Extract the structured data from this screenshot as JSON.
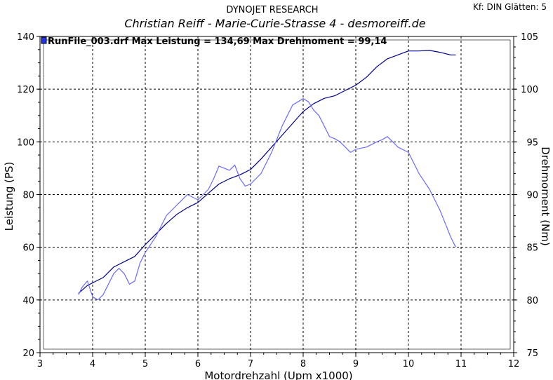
{
  "header": {
    "company": "DYNOJET RESEARCH",
    "subtitle": "Christian Reiff - Marie-Curie-Strasse 4 - desmoreiff.de",
    "settings": "Kf: DIN  Glätten: 5"
  },
  "legend": {
    "run_label": "RunFile_003.drf Max Leistung = 134,69     Max Drehmoment = 99,14"
  },
  "colors": {
    "power_line": "#00008b",
    "torque_line": "#6b6bff",
    "grid": "#000000",
    "legend_marker": "#2233ee"
  },
  "chart_data": {
    "type": "line",
    "xlabel": "Motordrehzahl (Upm x1000)",
    "ylabel": "Leistung (PS)",
    "y2label": "Drehmoment (Nm)",
    "xlim": [
      3,
      12
    ],
    "ylim": [
      20,
      140
    ],
    "y2lim": [
      75,
      105
    ],
    "x_ticks": [
      3,
      4,
      5,
      6,
      7,
      8,
      9,
      10,
      11,
      12
    ],
    "y_ticks": [
      20,
      40,
      60,
      80,
      100,
      120,
      140
    ],
    "y2_ticks": [
      75,
      80,
      85,
      90,
      95,
      100,
      105
    ],
    "grid": true,
    "series": [
      {
        "axis": "left",
        "x": [
          3.73,
          3.9,
          4.0,
          4.2,
          4.4,
          4.6,
          4.8,
          5.0,
          5.2,
          5.4,
          5.6,
          5.8,
          6.0,
          6.2,
          6.4,
          6.6,
          6.8,
          7.0,
          7.2,
          7.4,
          7.6,
          7.8,
          8.0,
          8.2,
          8.4,
          8.6,
          8.8,
          9.0,
          9.2,
          9.4,
          9.6,
          9.8,
          10.0,
          10.2,
          10.4,
          10.6,
          10.8,
          10.9
        ],
        "values": [
          42.5,
          45.5,
          46.5,
          48.5,
          52.5,
          54.5,
          56.5,
          61,
          65,
          69,
          72.5,
          75,
          77,
          80.5,
          84,
          86,
          87.5,
          89.5,
          93.5,
          98,
          102.5,
          107,
          111.5,
          114.5,
          116.5,
          117.5,
          119.5,
          121.5,
          124.5,
          128.5,
          131.5,
          133,
          134.5,
          134.5,
          134.7,
          134,
          133,
          133
        ]
      },
      {
        "axis": "right",
        "x": [
          3.73,
          3.8,
          3.9,
          4.0,
          4.1,
          4.2,
          4.3,
          4.4,
          4.5,
          4.6,
          4.7,
          4.8,
          4.9,
          5.0,
          5.2,
          5.4,
          5.6,
          5.8,
          6.0,
          6.2,
          6.3,
          6.4,
          6.5,
          6.6,
          6.7,
          6.8,
          6.9,
          7.0,
          7.2,
          7.4,
          7.6,
          7.8,
          8.0,
          8.1,
          8.2,
          8.3,
          8.4,
          8.5,
          8.6,
          8.7,
          8.8,
          8.9,
          9.0,
          9.2,
          9.4,
          9.5,
          9.6,
          9.7,
          9.8,
          10.0,
          10.2,
          10.4,
          10.6,
          10.8,
          10.9
        ],
        "values": [
          80.5,
          81.2,
          81.8,
          80.3,
          80.0,
          80.5,
          81.5,
          82.5,
          83.0,
          82.5,
          81.5,
          81.8,
          83.5,
          84.5,
          86.0,
          88.0,
          89.0,
          90.0,
          89.5,
          90.5,
          91.5,
          92.7,
          92.5,
          92.3,
          92.8,
          91.5,
          90.8,
          91.0,
          92.0,
          94.0,
          96.5,
          98.5,
          99.1,
          98.8,
          98.0,
          97.5,
          96.5,
          95.5,
          95.3,
          95.0,
          94.5,
          94.0,
          94.3,
          94.5,
          95.0,
          95.2,
          95.5,
          95.0,
          94.5,
          94.0,
          92.0,
          90.5,
          88.5,
          86.0,
          85.0
        ]
      }
    ]
  }
}
